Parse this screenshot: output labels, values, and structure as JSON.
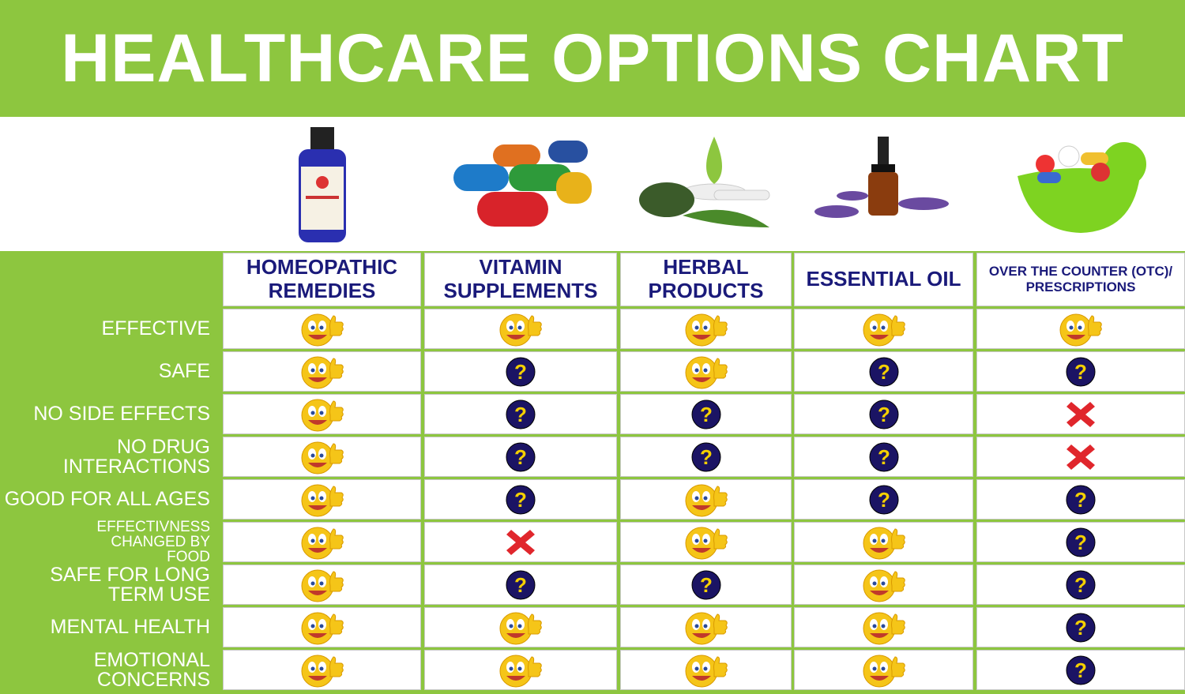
{
  "title": "HEALTHCARE OPTIONS CHART",
  "colors": {
    "green": "#8dc63f",
    "navy": "#1a1a7a",
    "yes": "#f5c518",
    "unknown": "#1b1464",
    "no": "#e0262c"
  },
  "legend_icons": {
    "yes": "thumbs-up-smiley-icon",
    "unknown": "question-mark-icon",
    "no": "red-x-icon"
  },
  "columns": [
    {
      "label": "HOMEOPATHIC REMEDIES",
      "image": "remedy-bottle-image"
    },
    {
      "label": "VITAMIN SUPPLEMENTS",
      "image": "vitamin-capsules-image"
    },
    {
      "label": "HERBAL PRODUCTS",
      "image": "herbal-leaves-image"
    },
    {
      "label": "ESSENTIAL OIL",
      "image": "essential-oil-lavender-image"
    },
    {
      "label": "OVER THE COUNTER (OTC)/ PRESCRIPTIONS",
      "image": "pills-bowl-image"
    }
  ],
  "rows": [
    {
      "label": "EFFECTIVE",
      "values": [
        "yes",
        "yes",
        "yes",
        "yes",
        "yes"
      ]
    },
    {
      "label": "SAFE",
      "values": [
        "yes",
        "unknown",
        "yes",
        "unknown",
        "unknown"
      ]
    },
    {
      "label": "NO SIDE EFFECTS",
      "values": [
        "yes",
        "unknown",
        "unknown",
        "unknown",
        "no"
      ]
    },
    {
      "label": "NO DRUG INTERACTIONS",
      "values": [
        "yes",
        "unknown",
        "unknown",
        "unknown",
        "no"
      ]
    },
    {
      "label": "GOOD FOR ALL AGES",
      "values": [
        "yes",
        "unknown",
        "yes",
        "unknown",
        "unknown"
      ]
    },
    {
      "label": "EFFECTIVNESS CHANGED BY FOOD",
      "values": [
        "yes",
        "no",
        "yes",
        "yes",
        "unknown"
      ]
    },
    {
      "label": "SAFE FOR LONG TERM USE",
      "values": [
        "yes",
        "unknown",
        "unknown",
        "yes",
        "unknown"
      ]
    },
    {
      "label": "MENTAL HEALTH",
      "values": [
        "yes",
        "yes",
        "yes",
        "yes",
        "unknown"
      ]
    },
    {
      "label": "EMOTIONAL CONCERNS",
      "values": [
        "yes",
        "yes",
        "yes",
        "yes",
        "unknown"
      ]
    }
  ]
}
